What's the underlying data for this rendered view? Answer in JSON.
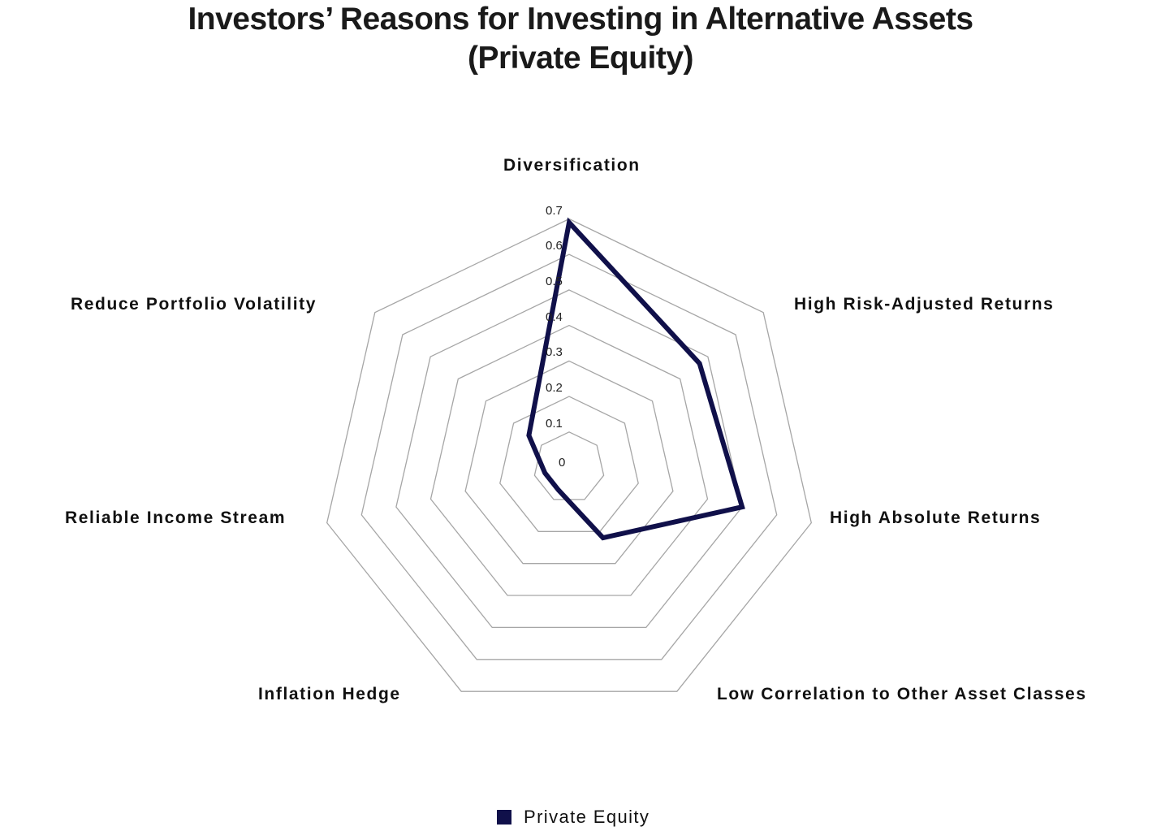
{
  "title": {
    "line1": "Investors’ Reasons for Investing in Alternative Assets",
    "line2": "(Private Equity)"
  },
  "colors": {
    "series": "#10104a",
    "grid": "#a6a6a6",
    "text": "#111111"
  },
  "legend": {
    "items": [
      {
        "label": "Private Equity",
        "color": "#10104a"
      }
    ]
  },
  "chart_data": {
    "type": "radar",
    "title": "Investors’ Reasons for Investing in Alternative Assets (Private Equity)",
    "categories": [
      "Diversification",
      "High Risk-Adjusted Returns",
      "High Absolute Returns",
      "Low Correlation to Other Asset Classes",
      "Inflation Hedge",
      "Reliable Income Stream",
      "Reduce Portfolio Volatility"
    ],
    "series": [
      {
        "name": "Private Equity",
        "values": [
          0.69,
          0.47,
          0.5,
          0.22,
          0.07,
          0.07,
          0.145
        ]
      }
    ],
    "radial_ticks": [
      "0",
      "0.1",
      "0.2",
      "0.3",
      "0.4",
      "0.5",
      "0.6",
      "0.7"
    ],
    "rlim": [
      0,
      0.7
    ],
    "grid": true,
    "legend_position": "bottom"
  }
}
